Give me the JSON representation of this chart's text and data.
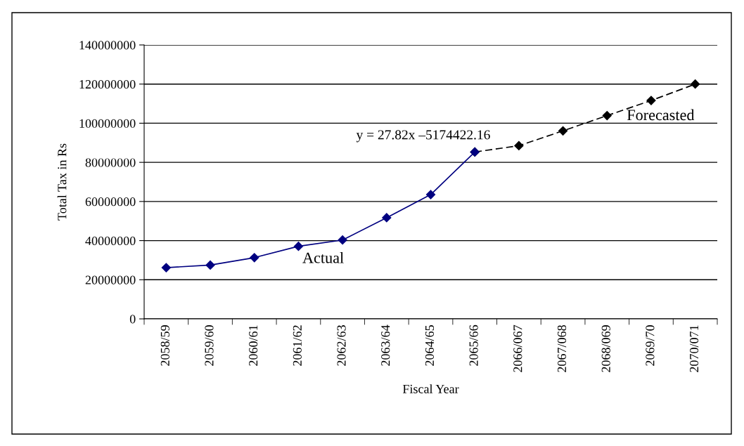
{
  "chart_data": {
    "type": "line",
    "xlabel": "Fiscal Year",
    "ylabel": "Total Tax in Rs",
    "categories": [
      "2058/59",
      "2059/60",
      "2060/61",
      "2061/62",
      "2062/63",
      "2063/64",
      "2064/65",
      "2065/66",
      "2066/067",
      "2067/068",
      "2068/069",
      "2069/70",
      "2070/071"
    ],
    "series": [
      {
        "name": "Actual",
        "color": "#000080",
        "line_style": "solid",
        "values": [
          26200000,
          27500000,
          31300000,
          37100000,
          40300000,
          51700000,
          63500000,
          85300000,
          null,
          null,
          null,
          null,
          null
        ]
      },
      {
        "name": "Forecasted",
        "color": "#000000",
        "line_style": "dashed",
        "values": [
          null,
          null,
          null,
          null,
          null,
          null,
          null,
          85300000,
          88500000,
          96100000,
          103900000,
          111600000,
          120000000
        ]
      }
    ],
    "annotations": [
      "y = 27.82x –5174422.16"
    ],
    "ylim": [
      0,
      140000000
    ],
    "yticks": [
      0,
      20000000,
      40000000,
      60000000,
      80000000,
      100000000,
      120000000,
      140000000
    ],
    "grid": "y",
    "marker": "diamond",
    "legend": false
  }
}
